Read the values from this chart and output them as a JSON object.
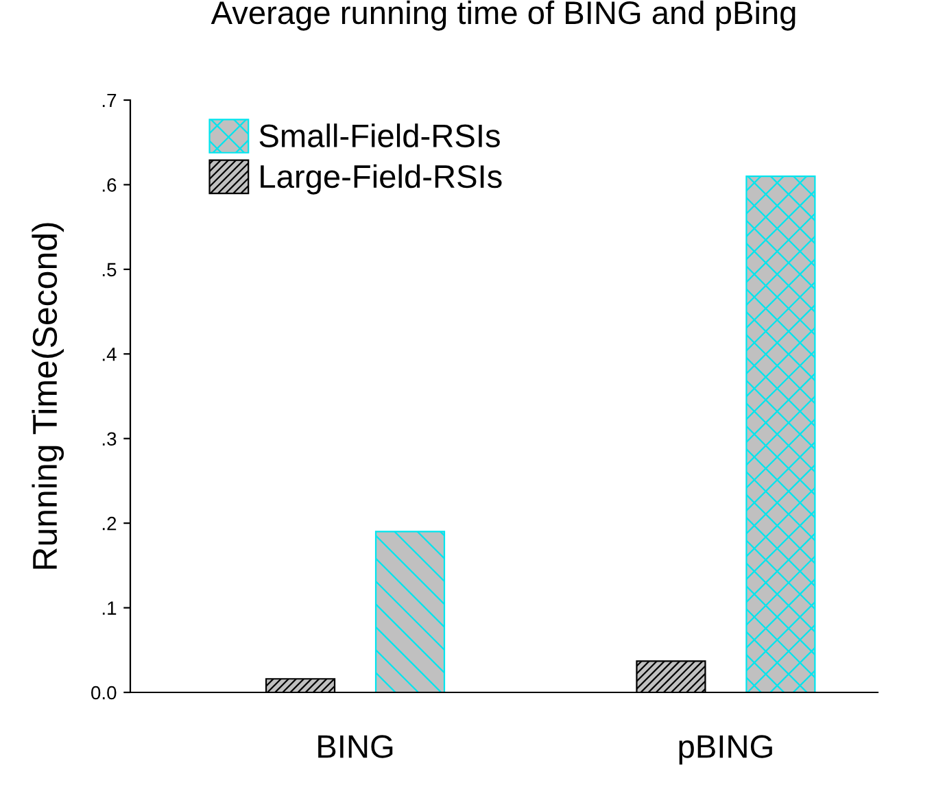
{
  "chart_data": {
    "type": "bar",
    "title": "Average running time of BING and pBing",
    "ylabel": "Running Time(Second)",
    "categories": [
      "BING",
      "pBING"
    ],
    "series": [
      {
        "name": "Small-Field-RSIs",
        "color": "#00e5ee",
        "values": [
          0.19,
          0.61
        ]
      },
      {
        "name": "Large-Field-RSIs",
        "color": "#000000",
        "values": [
          0.016,
          0.037
        ]
      }
    ],
    "ylim": [
      0,
      0.7
    ],
    "yticks": [
      {
        "value": 0,
        "label": "0.0"
      },
      {
        "value": 0.1,
        "label": ".1"
      },
      {
        "value": 0.2,
        "label": ".2"
      },
      {
        "value": 0.3,
        "label": ".3"
      },
      {
        "value": 0.4,
        "label": ".4"
      },
      {
        "value": 0.5,
        "label": ".5"
      },
      {
        "value": 0.6,
        "label": ".6"
      },
      {
        "value": 0.7,
        "label": ".7"
      }
    ],
    "legend": "top left",
    "grid": false
  }
}
